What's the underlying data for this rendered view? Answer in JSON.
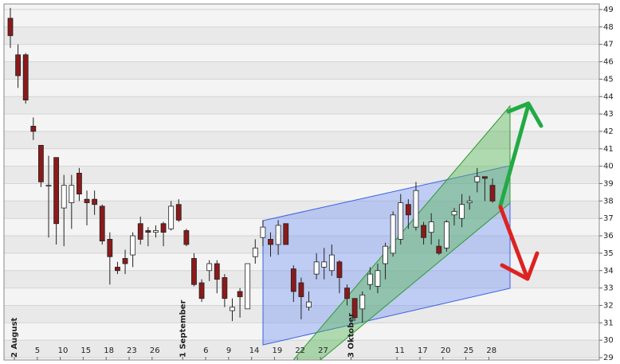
{
  "chart_data": {
    "type": "candlestick",
    "categories": [
      "2 August",
      null,
      null,
      "5",
      null,
      null,
      "10",
      null,
      null,
      "15",
      null,
      null,
      "18",
      null,
      null,
      "23",
      null,
      null,
      "26",
      null,
      null,
      null,
      "1 September",
      null,
      null,
      "6",
      null,
      null,
      "9",
      null,
      null,
      "14",
      null,
      null,
      "19",
      null,
      null,
      "22",
      null,
      null,
      "27",
      null,
      null,
      null,
      "3 Oktober",
      null,
      null,
      null,
      null,
      null,
      "11",
      null,
      null,
      "17",
      null,
      null,
      "20",
      null,
      null,
      "25",
      null,
      null,
      "28",
      null
    ],
    "open": [
      48.5,
      46.4,
      46.4,
      42.3,
      41.2,
      38.9,
      40.5,
      37.6,
      37.9,
      39.6,
      38.1,
      38.1,
      37.7,
      35.8,
      34.2,
      34.7,
      34.9,
      36.7,
      36.3,
      36.2,
      36.7,
      36.4,
      37.8,
      36.3,
      34.7,
      33.3,
      34.0,
      34.4,
      33.6,
      31.7,
      32.8,
      31.8,
      34.8,
      35.9,
      35.8,
      35.5,
      36.7,
      34.1,
      33.3,
      31.9,
      33.8,
      34.2,
      34.0,
      34.5,
      33.0,
      32.4,
      31.8,
      33.2,
      33.1,
      34.4,
      35.0,
      35.8,
      37.8,
      36.5,
      36.6,
      36.2,
      35.4,
      35.3,
      37.2,
      37.0,
      37.9,
      39.1,
      39.4,
      38.9
    ],
    "high": [
      49.1,
      47.0,
      46.5,
      42.8,
      41.2,
      40.6,
      40.5,
      39.5,
      39.5,
      39.9,
      38.6,
      38.6,
      37.8,
      36.2,
      34.5,
      35.2,
      36.2,
      37.1,
      36.5,
      36.6,
      36.8,
      38.0,
      38.1,
      36.4,
      35.0,
      33.5,
      34.6,
      34.6,
      33.8,
      32.4,
      33.0,
      34.4,
      35.8,
      36.9,
      36.2,
      36.9,
      36.7,
      34.3,
      33.6,
      32.8,
      35.0,
      35.3,
      35.5,
      34.6,
      33.2,
      32.4,
      32.8,
      34.2,
      34.4,
      35.6,
      37.4,
      38.4,
      38.1,
      39.1,
      36.8,
      37.3,
      35.8,
      36.9,
      37.6,
      38.4,
      38.3,
      39.9,
      39.4,
      39.3
    ],
    "low": [
      46.8,
      44.5,
      43.6,
      41.5,
      38.8,
      35.9,
      35.5,
      35.4,
      36.4,
      38.0,
      36.6,
      37.2,
      35.5,
      33.2,
      33.8,
      33.8,
      34.2,
      35.5,
      35.4,
      35.9,
      35.4,
      36.3,
      36.8,
      35.4,
      33.1,
      32.2,
      33.4,
      32.7,
      31.9,
      31.1,
      31.3,
      31.8,
      34.4,
      35.4,
      34.8,
      34.9,
      35.5,
      32.2,
      31.2,
      31.7,
      33.5,
      33.5,
      33.7,
      32.7,
      32.0,
      31.1,
      31.0,
      32.9,
      32.7,
      33.5,
      34.8,
      35.5,
      36.4,
      36.3,
      35.5,
      35.5,
      34.9,
      35.1,
      36.6,
      36.5,
      37.5,
      38.5,
      38.0,
      37.9
    ],
    "close": [
      47.5,
      45.2,
      43.8,
      42.0,
      39.1,
      38.9,
      36.7,
      38.9,
      38.9,
      38.4,
      37.9,
      37.8,
      35.7,
      34.8,
      34.0,
      34.4,
      36.0,
      35.8,
      36.2,
      36.3,
      36.2,
      37.7,
      36.9,
      35.5,
      33.2,
      32.4,
      34.4,
      33.5,
      32.4,
      31.9,
      32.5,
      34.4,
      35.3,
      36.5,
      35.5,
      36.6,
      35.5,
      32.8,
      32.5,
      32.2,
      34.5,
      34.5,
      34.9,
      33.6,
      32.4,
      31.3,
      32.6,
      33.8,
      34.0,
      35.4,
      37.2,
      37.9,
      37.2,
      38.6,
      35.9,
      36.8,
      35.0,
      36.8,
      37.4,
      37.8,
      38.0,
      39.4,
      39.3,
      38.0
    ],
    "up_color": "#ffffff",
    "down_color": "#8b1a1a",
    "ylim": [
      29,
      49
    ],
    "yticks": [
      29,
      30,
      31,
      32,
      33,
      34,
      35,
      36,
      37,
      38,
      39,
      40,
      41,
      42,
      43,
      44,
      45,
      46,
      47,
      48,
      49
    ],
    "y_axis_side": "right",
    "grid": true
  }
}
